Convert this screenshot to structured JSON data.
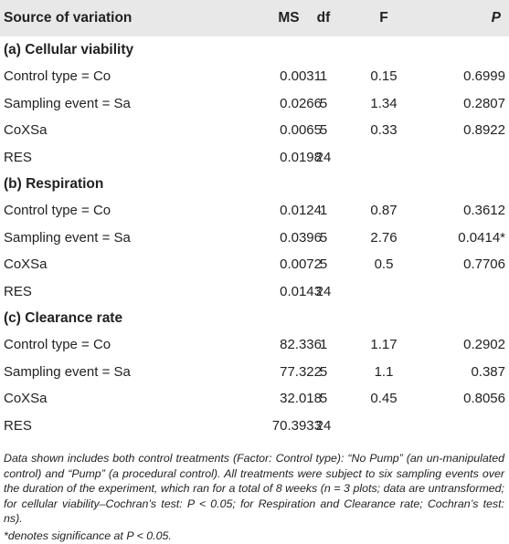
{
  "table": {
    "headers": {
      "source": "Source of variation",
      "df": "df",
      "ms": "MS",
      "f": "F",
      "p": "P"
    },
    "sections": [
      {
        "title": "(a) Cellular viability",
        "rows": [
          {
            "source": "Control type = Co",
            "df": "1",
            "ms": "0.0031",
            "f": "0.15",
            "p": "0.6999"
          },
          {
            "source": "Sampling event = Sa",
            "df": "5",
            "ms": "0.0266",
            "f": "1.34",
            "p": "0.2807"
          },
          {
            "source": "CoXSa",
            "df": "5",
            "ms": "0.0065",
            "f": "0.33",
            "p": "0.8922"
          },
          {
            "source": "RES",
            "df": "24",
            "ms": "0.0198",
            "f": "",
            "p": ""
          }
        ]
      },
      {
        "title": "(b) Respiration",
        "rows": [
          {
            "source": "Control type = Co",
            "df": "1",
            "ms": "0.0124",
            "f": "0.87",
            "p": "0.3612"
          },
          {
            "source": "Sampling event = Sa",
            "df": "5",
            "ms": "0.0396",
            "f": "2.76",
            "p": "0.0414*"
          },
          {
            "source": "CoXSa",
            "df": "5",
            "ms": "0.0072",
            "f": "0.5",
            "p": "0.7706"
          },
          {
            "source": "RES",
            "df": "24",
            "ms": "0.0143",
            "f": "",
            "p": ""
          }
        ]
      },
      {
        "title": "(c) Clearance rate",
        "rows": [
          {
            "source": "Control type = Co",
            "df": "1",
            "ms": "82.336",
            "f": "1.17",
            "p": "0.2902"
          },
          {
            "source": "Sampling event = Sa",
            "df": "5",
            "ms": "77.322",
            "f": "1.1",
            "p": "0.387"
          },
          {
            "source": "CoXSa",
            "df": "5",
            "ms": "32.018",
            "f": "0.45",
            "p": "0.8056"
          },
          {
            "source": "RES",
            "df": "24",
            "ms": "70.3933",
            "f": "",
            "p": ""
          }
        ]
      }
    ]
  },
  "caption": {
    "text": "Data shown includes both control treatments (Factor: Control type): “No Pump” (an un-manipulated control) and “Pump” (a procedural control). All treatments were subject to six sampling events over the duration of the experiment, which ran for a total of 8 weeks (n = 3 plots; data are untransformed; for cellular viability–Cochran’s test: P < 0.05; for Respiration and Clearance rate; Cochran’s test: ns).",
    "note": "*denotes significance at P < 0.05."
  }
}
